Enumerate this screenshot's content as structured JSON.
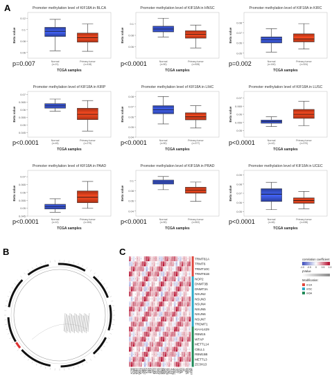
{
  "panel_letters": {
    "a": "A",
    "b": "B",
    "c": "C"
  },
  "chart_data": [
    {
      "type": "boxplot",
      "title": "Promoter methylation level of KIF18A in BLCA",
      "xlabel": "TCGA samples",
      "ylabel": "Beta value",
      "categories": [
        "Normal",
        "Primary tumor"
      ],
      "sample_sizes": [
        "(n=21)",
        "(n=418)"
      ],
      "ytick_labels": [
        "0.12",
        "0.1",
        "0.08",
        "0.06"
      ],
      "ylim": [
        0.05,
        0.13
      ],
      "boxes": [
        {
          "name": "Normal",
          "min": 0.063,
          "q1": 0.088,
          "median": 0.097,
          "q3": 0.104,
          "max": 0.118,
          "color": "#3a57d9"
        },
        {
          "name": "Primary tumor",
          "min": 0.062,
          "q1": 0.078,
          "median": 0.086,
          "q3": 0.094,
          "max": 0.11,
          "color": "#e8421d"
        }
      ],
      "pvalue": "p=0.007"
    },
    {
      "type": "boxplot",
      "title": "Promoter methylation level of KIF18A in HNSC",
      "xlabel": "TCGA samples",
      "ylabel": "Beta value",
      "categories": [
        "Normal",
        "Primary tumor"
      ],
      "sample_sizes": [
        "(n=50)",
        "(n=528)"
      ],
      "ytick_labels": [
        "0.1",
        "0.08",
        "0.06"
      ],
      "ylim": [
        0.04,
        0.12
      ],
      "boxes": [
        {
          "name": "Normal",
          "min": 0.077,
          "q1": 0.086,
          "median": 0.091,
          "q3": 0.096,
          "max": 0.11,
          "color": "#3a57d9"
        },
        {
          "name": "Primary tumor",
          "min": 0.058,
          "q1": 0.075,
          "median": 0.082,
          "q3": 0.088,
          "max": 0.098,
          "color": "#e8421d"
        }
      ],
      "pvalue": "p<0.0001"
    },
    {
      "type": "boxplot",
      "title": "Promoter methylation level of KIF18A in KIRC",
      "xlabel": "TCGA samples",
      "ylabel": "Beta value",
      "categories": [
        "Normal",
        "Primary tumor"
      ],
      "sample_sizes": [
        "(n=160)",
        "(n=324)"
      ],
      "ytick_labels": [
        "0.08",
        "0.07",
        "0.06",
        "0.05"
      ],
      "ylim": [
        0.045,
        0.09
      ],
      "boxes": [
        {
          "name": "Normal",
          "min": 0.051,
          "q1": 0.06,
          "median": 0.063,
          "q3": 0.066,
          "max": 0.074,
          "color": "#3a57d9"
        },
        {
          "name": "Primary tumor",
          "min": 0.054,
          "q1": 0.061,
          "median": 0.064,
          "q3": 0.069,
          "max": 0.079,
          "color": "#e8421d"
        }
      ],
      "pvalue": "p=0.002"
    },
    {
      "type": "boxplot",
      "title": "Promoter methylation level of KIF18A in KIRP",
      "xlabel": "TCGA samples",
      "ylabel": "Beta value",
      "categories": [
        "Normal",
        "Primary tumor"
      ],
      "sample_sizes": [
        "(n=45)",
        "(n=275)"
      ],
      "ytick_labels": [
        "0.07",
        "0.065",
        "0.06",
        "0.055",
        "0.05",
        "0.045"
      ],
      "ylim": [
        0.042,
        0.072
      ],
      "boxes": [
        {
          "name": "Normal",
          "min": 0.059,
          "q1": 0.061,
          "median": 0.0625,
          "q3": 0.064,
          "max": 0.067,
          "color": "#3a57d9"
        },
        {
          "name": "Primary tumor",
          "min": 0.046,
          "q1": 0.0535,
          "median": 0.057,
          "q3": 0.061,
          "max": 0.066,
          "color": "#e8421d"
        }
      ],
      "pvalue": "p<0.0001"
    },
    {
      "type": "boxplot",
      "title": "Promoter methylation level of KIF18A in LIHC",
      "xlabel": "TCGA samples",
      "ylabel": "Beta value",
      "categories": [
        "Normal",
        "Primary tumor"
      ],
      "sample_sizes": [
        "(n=50)",
        "(n=377)"
      ],
      "ytick_labels": [
        "0.08",
        "0.07",
        "0.06",
        "0.05",
        "0.04"
      ],
      "ylim": [
        0.04,
        0.085
      ],
      "boxes": [
        {
          "name": "Normal",
          "min": 0.053,
          "q1": 0.063,
          "median": 0.067,
          "q3": 0.071,
          "max": 0.08,
          "color": "#3a57d9"
        },
        {
          "name": "Primary tumor",
          "min": 0.049,
          "q1": 0.057,
          "median": 0.06,
          "q3": 0.064,
          "max": 0.071,
          "color": "#e8421d"
        }
      ],
      "pvalue": "p<0.0001"
    },
    {
      "type": "boxplot",
      "title": "Promoter methylation level of KIF18A in LUSC",
      "xlabel": "TCGA samples",
      "ylabel": "Beta value",
      "categories": [
        "Normal",
        "Primary tumor"
      ],
      "sample_sizes": [
        "(n=42)",
        "(n=370)"
      ],
      "ytick_labels": [
        "0.07",
        "0.065",
        "0.06",
        "0.055",
        "0.05"
      ],
      "ylim": [
        0.046,
        0.074
      ],
      "boxes": [
        {
          "name": "Normal",
          "min": 0.0525,
          "q1": 0.0545,
          "median": 0.0555,
          "q3": 0.0565,
          "max": 0.0585,
          "color": "#3a57d9"
        },
        {
          "name": "Primary tumor",
          "min": 0.053,
          "q1": 0.0575,
          "median": 0.06,
          "q3": 0.063,
          "max": 0.068,
          "color": "#e8421d"
        }
      ],
      "pvalue": "p<0.0001"
    },
    {
      "type": "boxplot",
      "title": "Promoter methylation level of KIF18A in PAAD",
      "xlabel": "TCGA samples",
      "ylabel": "Beta value",
      "categories": [
        "Normal",
        "Primary tumor"
      ],
      "sample_sizes": [
        "(n=10)",
        "(n=184)"
      ],
      "ytick_labels": [
        "0.07",
        "0.065",
        "0.06",
        "0.055",
        "0.05",
        "0.045"
      ],
      "ylim": [
        0.045,
        0.074
      ],
      "boxes": [
        {
          "name": "Normal",
          "min": 0.0475,
          "q1": 0.0495,
          "median": 0.051,
          "q3": 0.0525,
          "max": 0.056,
          "color": "#3a57d9"
        },
        {
          "name": "Primary tumor",
          "min": 0.05,
          "q1": 0.0535,
          "median": 0.057,
          "q3": 0.061,
          "max": 0.067,
          "color": "#e8421d"
        }
      ],
      "pvalue": "p<0.0001"
    },
    {
      "type": "boxplot",
      "title": "Promoter methylation level of KIF18A in PRAD",
      "xlabel": "TCGA samples",
      "ylabel": "Beta value",
      "categories": [
        "Normal",
        "Primary tumor"
      ],
      "sample_sizes": [
        "(n=50)",
        "(n=502)"
      ],
      "ytick_labels": [
        "0.1",
        "0.08",
        "0.06",
        "0.04"
      ],
      "ylim": [
        0.03,
        0.12
      ],
      "boxes": [
        {
          "name": "Normal",
          "min": 0.082,
          "q1": 0.093,
          "median": 0.097,
          "q3": 0.101,
          "max": 0.108,
          "color": "#3a57d9"
        },
        {
          "name": "Primary tumor",
          "min": 0.059,
          "q1": 0.075,
          "median": 0.081,
          "q3": 0.087,
          "max": 0.097,
          "color": "#e8421d"
        }
      ],
      "pvalue": "p<0.0001"
    },
    {
      "type": "boxplot",
      "title": "Promoter methylation level of KIF18A in UCEC",
      "xlabel": "TCGA samples",
      "ylabel": "Beta value",
      "categories": [
        "Normal",
        "Primary tumor"
      ],
      "sample_sizes": [
        "(n=46)",
        "(n=438)"
      ],
      "ytick_labels": [
        "0.09",
        "0.08",
        "0.07",
        "0.06",
        "0.05"
      ],
      "ylim": [
        0.045,
        0.095
      ],
      "boxes": [
        {
          "name": "Normal",
          "min": 0.052,
          "q1": 0.061,
          "median": 0.069,
          "q3": 0.075,
          "max": 0.082,
          "color": "#3a57d9"
        },
        {
          "name": "Primary tumor",
          "min": 0.053,
          "q1": 0.059,
          "median": 0.062,
          "q3": 0.065,
          "max": 0.072,
          "color": "#e8421d"
        }
      ],
      "pvalue": "p<0.0001"
    },
    {
      "type": "heatmap",
      "columns": [
        "BLCA",
        "BRCA",
        "CESC",
        "CHOL",
        "COAD",
        "ESCA",
        "GBM",
        "HNSC",
        "KICH",
        "KIRC",
        "KIRP",
        "LIHC",
        "LUAD",
        "LUSC",
        "PAAD",
        "PCPG",
        "PRAD",
        "READ",
        "SARC",
        "SKCM",
        "STAD",
        "THCA",
        "THYM",
        "UCEC",
        "UCS",
        "UVM",
        "LAML",
        "LGG",
        "OV",
        "TGCT",
        "DLBC",
        "ACC",
        "MESO"
      ],
      "rows": [
        "TRMT61A",
        "TRMT6",
        "TRMT10C",
        "TRMT61B",
        "NOP2",
        "DNMT3B",
        "DNMT3A",
        "NSUN2",
        "NSUN3",
        "NSUN4",
        "NSUN5",
        "NSUN6",
        "NSUN7",
        "TRDMT1",
        "KIAA1429",
        "RBM15",
        "WTAP",
        "METTL14",
        "CBLL1",
        "RBM15B",
        "METTL3",
        "ZC3H13"
      ],
      "colorbar_title": "correlation coefficient",
      "colorbar_ticks": [
        "-1.0",
        "-0.5",
        "0",
        "0.5",
        "1.0"
      ],
      "pvalue_legend": "pValue",
      "modification_title": "Modification:",
      "modifications": [
        {
          "name": "m1A",
          "color": "#e0463c"
        },
        {
          "name": "m5C",
          "color": "#2ba9c8"
        },
        {
          "name": "m6A",
          "color": "#1f8a57"
        }
      ],
      "row_groups": [
        {
          "modification": "m1A",
          "rows": 4
        },
        {
          "modification": "m5C",
          "rows": 10
        },
        {
          "modification": "m6A",
          "rows": 8
        }
      ],
      "color_scale": {
        "negative": "#3b4cc0",
        "zero": "#ffffff",
        "positive": "#b40426"
      }
    }
  ]
}
